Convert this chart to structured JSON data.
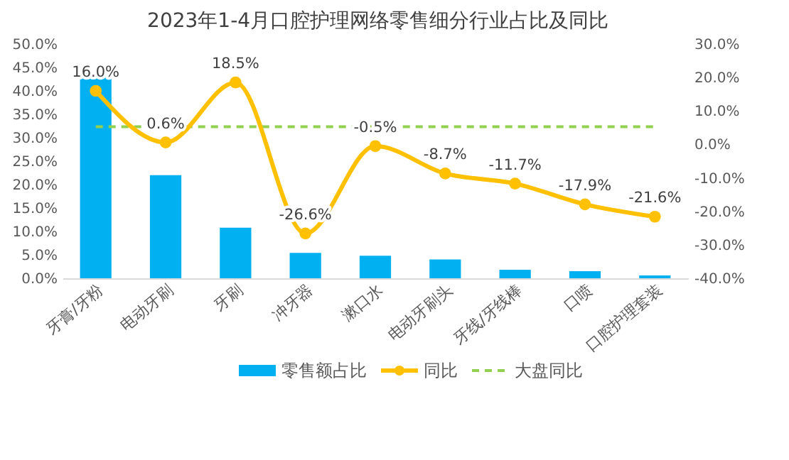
{
  "chart_data": {
    "type": "bar",
    "title": "2023年1-4月口腔护理网络零售细分行业占比及同比",
    "categories": [
      "牙膏/牙粉",
      "电动牙刷",
      "牙刷",
      "冲牙器",
      "漱口水",
      "电动牙刷头",
      "牙线/牙线棒",
      "口喷",
      "口腔护理套装"
    ],
    "series": [
      {
        "name": "零售额占比",
        "color": "#00b0f0",
        "values": [
          43.8,
          22.0,
          10.8,
          5.4,
          4.8,
          4.0,
          1.8,
          1.5,
          0.6
        ]
      },
      {
        "name": "同比",
        "type": "line",
        "axis": "y2",
        "color": "#ffc000",
        "values": [
          16.0,
          0.6,
          18.5,
          -26.6,
          -0.5,
          -8.7,
          -11.7,
          -17.9,
          -21.6
        ],
        "value_labels": [
          "16.0%",
          "0.6%",
          "18.5%",
          "-26.6%",
          "-0.5%",
          "-8.7%",
          "-11.7%",
          "-17.9%",
          "-21.6%"
        ]
      }
    ],
    "ylim": [
      0,
      50
    ],
    "yticks": [
      {
        "value": 0,
        "label": "0.0%"
      },
      {
        "value": 5,
        "label": "5.0%"
      },
      {
        "value": 10,
        "label": "10.0%"
      },
      {
        "value": 15,
        "label": "15.0%"
      },
      {
        "value": 20,
        "label": "20.0%"
      },
      {
        "value": 25,
        "label": "25.0%"
      },
      {
        "value": 30,
        "label": "30.0%"
      },
      {
        "value": 35,
        "label": "35.0%"
      },
      {
        "value": 40,
        "label": "40.0%"
      },
      {
        "value": 45,
        "label": "45.0%"
      },
      {
        "value": 50,
        "label": "50.0%"
      }
    ],
    "y2lim": [
      -40,
      30
    ],
    "y2ticks": [
      {
        "value": -40,
        "label": "-40.0%"
      },
      {
        "value": -30,
        "label": "-30.0%"
      },
      {
        "value": -20,
        "label": "-20.0%"
      },
      {
        "value": -10,
        "label": "-10.0%"
      },
      {
        "value": 0,
        "label": "0.0%"
      },
      {
        "value": 10,
        "label": "10.0%"
      },
      {
        "value": 20,
        "label": "20.0%"
      },
      {
        "value": 30,
        "label": "30.0%"
      }
    ],
    "ref_lines": [
      {
        "axis": "y2",
        "value": 5.3,
        "label": "大盘同比",
        "color": "#92d050",
        "line_style": "dashed"
      }
    ],
    "marker": "circle",
    "grid": false,
    "legend": "bottom"
  }
}
